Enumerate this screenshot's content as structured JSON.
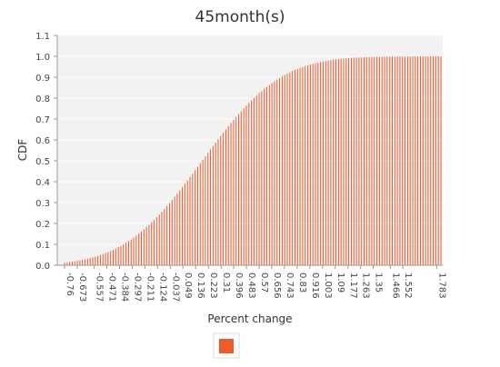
{
  "chart_data": {
    "type": "bar",
    "title": "45month(s)",
    "xlabel": "Percent change",
    "ylabel": "CDF",
    "ylim": [
      0,
      1.1
    ],
    "y_ticks": [
      "0.0",
      "0.1",
      "0.2",
      "0.3",
      "0.4",
      "0.5",
      "0.6",
      "0.7",
      "0.8",
      "0.9",
      "1.0",
      "1.1"
    ],
    "x_tick_labels": [
      "-0.76",
      "-0.673",
      "-0.557",
      "-0.471",
      "-0.384",
      "-0.297",
      "-0.211",
      "-0.124",
      "-0.037",
      "0.049",
      "0.136",
      "0.223",
      "0.31",
      "0.396",
      "0.483",
      "0.57",
      "0.656",
      "0.743",
      "0.83",
      "0.916",
      "1.003",
      "1.09",
      "1.177",
      "1.263",
      "1.35",
      "1.466",
      "1.552",
      "1.783"
    ],
    "x_range": [
      -0.76,
      1.812
    ],
    "bar_color": "#f05a2a",
    "grid": true,
    "legend": {
      "placement": "bottom-center",
      "entries": [
        ""
      ]
    }
  }
}
